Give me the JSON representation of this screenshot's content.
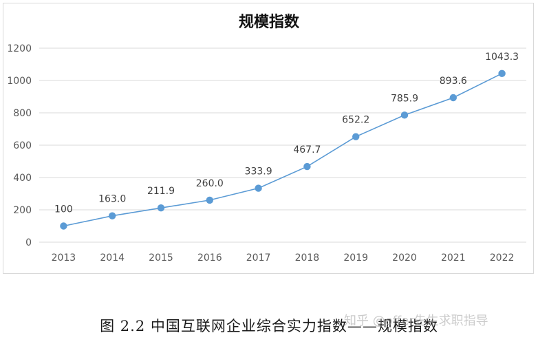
{
  "chart_data": {
    "type": "line",
    "title": "规模指数",
    "xlabel": "",
    "ylabel": "",
    "x": [
      "2013",
      "2014",
      "2015",
      "2016",
      "2017",
      "2018",
      "2019",
      "2020",
      "2021",
      "2022"
    ],
    "series": [
      {
        "values": [
          100,
          163.0,
          211.9,
          260.0,
          333.9,
          467.7,
          652.2,
          785.9,
          893.6,
          1043.3
        ],
        "labels": [
          "100",
          "163.0",
          "211.9",
          "260.0",
          "333.9",
          "467.7",
          "652.2",
          "785.9",
          "893.6",
          "1043.3"
        ]
      }
    ],
    "yticks": [
      "0",
      "200",
      "400",
      "600",
      "800",
      "1000",
      "1200"
    ],
    "ylim": [
      0,
      1200
    ],
    "grid": true,
    "legend": "none",
    "colors": {
      "line": "#5b9bd5",
      "grid": "#d9d9d9",
      "tick_text": "#595959",
      "label_text": "#404040"
    }
  },
  "caption": "图 2.2  中国互联网企业综合实力指数——规模指数",
  "watermark": "知乎 @offer先生求职指导"
}
